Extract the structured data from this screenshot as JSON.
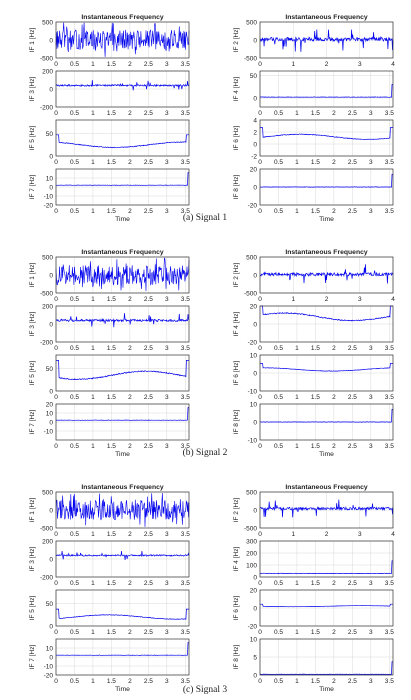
{
  "figure": {
    "captions": [
      "(a) Signal 1",
      "(b) Signal 2",
      "(c) Signal 3"
    ],
    "colors": {
      "trace": "#0000ee",
      "axis": "#333333",
      "grid": "#d8d8d8",
      "text": "#222222"
    }
  },
  "chart_data": [
    {
      "type": "line",
      "signal": "Signal 1",
      "column": "left",
      "panel": 1,
      "title": "Instantaneous Frequency",
      "ylabel": "IF 1 [Hz]",
      "xlabel": "",
      "xlim": [
        0,
        3.6
      ],
      "ylim": [
        -500,
        500
      ],
      "yticks": [
        -500,
        0,
        500
      ],
      "xticks": [
        "0",
        "0.5",
        "1",
        "1.5",
        "2",
        "2.5",
        "3",
        "3.5"
      ],
      "pattern": "bands",
      "baseline": 0,
      "amp": 500
    },
    {
      "type": "line",
      "signal": "Signal 1",
      "column": "left",
      "panel": 3,
      "title": "",
      "ylabel": "IF 3 [Hz]",
      "xlabel": "",
      "xlim": [
        0,
        3.6
      ],
      "ylim": [
        -200,
        200
      ],
      "yticks": [
        -200,
        0,
        200
      ],
      "xticks": [
        "0",
        "0.5",
        "1",
        "1.5",
        "2",
        "2.5",
        "3",
        "3.5"
      ],
      "pattern": "spiky",
      "baseline": 40,
      "amp": 60
    },
    {
      "type": "line",
      "signal": "Signal 1",
      "column": "left",
      "panel": 5,
      "title": "",
      "ylabel": "IF 5 [Hz]",
      "xlabel": "",
      "xlim": [
        0,
        3.6
      ],
      "ylim": [
        0,
        80
      ],
      "yticks": [
        0,
        50
      ],
      "xticks": [
        "0",
        "0.5",
        "1",
        "1.5",
        "2",
        "2.5",
        "3",
        "3.5"
      ],
      "pattern": "smooth",
      "baseline": 25,
      "amp": 10
    },
    {
      "type": "line",
      "signal": "Signal 1",
      "column": "left",
      "panel": 7,
      "title": "",
      "ylabel": "IF 7 [Hz]",
      "xlabel": "Time",
      "xlim": [
        0,
        3.6
      ],
      "ylim": [
        -20,
        20
      ],
      "yticks": [
        -20,
        -10,
        0,
        10
      ],
      "xticks": [
        "0",
        "0.5",
        "1",
        "1.5",
        "2",
        "2.5",
        "3",
        "3.5"
      ],
      "pattern": "flat",
      "baseline": 2,
      "amp": 0
    },
    {
      "type": "line",
      "signal": "Signal 1",
      "column": "right",
      "panel": 2,
      "title": "Instantaneous Frequency",
      "ylabel": "IF 2 [Hz]",
      "xlabel": "",
      "xlim": [
        0,
        4
      ],
      "ylim": [
        -500,
        500
      ],
      "yticks": [
        -500,
        0,
        500
      ],
      "xticks": [
        "0",
        "1",
        "2",
        "3",
        "4"
      ],
      "pattern": "spiky",
      "baseline": 20,
      "amp": 350
    },
    {
      "type": "line",
      "signal": "Signal 1",
      "column": "right",
      "panel": 4,
      "title": "",
      "ylabel": "IF 4 [Hz]",
      "xlabel": "",
      "xlim": [
        0,
        3.6
      ],
      "ylim": [
        -20,
        60
      ],
      "yticks": [
        0,
        50
      ],
      "xticks": [
        "0",
        "0.5",
        "1",
        "1.5",
        "2",
        "2.5",
        "3",
        "3.5"
      ],
      "pattern": "flat",
      "baseline": 2,
      "amp": 0
    },
    {
      "type": "line",
      "signal": "Signal 1",
      "column": "right",
      "panel": 6,
      "title": "",
      "ylabel": "IF 6 [Hz]",
      "xlabel": "",
      "xlim": [
        0,
        3.6
      ],
      "ylim": [
        -2,
        4
      ],
      "yticks": [
        -2,
        0,
        2,
        4
      ],
      "xticks": [
        "0",
        "0.5",
        "1",
        "1.5",
        "2",
        "2.5",
        "3",
        "3.5"
      ],
      "pattern": "smooth",
      "baseline": 1.2,
      "amp": 0.7
    },
    {
      "type": "line",
      "signal": "Signal 1",
      "column": "right",
      "panel": 8,
      "title": "",
      "ylabel": "IF 8 [Hz]",
      "xlabel": "Time",
      "xlim": [
        0,
        3.6
      ],
      "ylim": [
        -20,
        20
      ],
      "yticks": [
        -20,
        0,
        20
      ],
      "xticks": [
        "0",
        "0.5",
        "1",
        "1.5",
        "2",
        "2.5",
        "3",
        "3.5"
      ],
      "pattern": "flat",
      "baseline": 0,
      "amp": 0
    },
    {
      "type": "line",
      "signal": "Signal 2",
      "column": "left",
      "panel": 1,
      "title": "Instantaneous Frequency",
      "ylabel": "IF 1 [Hz]",
      "xlabel": "",
      "xlim": [
        0,
        3.6
      ],
      "ylim": [
        -500,
        500
      ],
      "yticks": [
        -500,
        0,
        500
      ],
      "xticks": [
        "0",
        "0.5",
        "1",
        "1.5",
        "2",
        "2.5",
        "3",
        "3.5"
      ],
      "pattern": "bands",
      "baseline": 0,
      "amp": 500
    },
    {
      "type": "line",
      "signal": "Signal 2",
      "column": "left",
      "panel": 3,
      "title": "",
      "ylabel": "IF 3 [Hz]",
      "xlabel": "",
      "xlim": [
        0,
        3.6
      ],
      "ylim": [
        -200,
        200
      ],
      "yticks": [
        -200,
        0,
        200
      ],
      "xticks": [
        "0",
        "0.5",
        "1",
        "1.5",
        "2",
        "2.5",
        "3",
        "3.5"
      ],
      "pattern": "spiky",
      "baseline": 40,
      "amp": 80
    },
    {
      "type": "line",
      "signal": "Signal 2",
      "column": "left",
      "panel": 5,
      "title": "",
      "ylabel": "IF 5 [Hz]",
      "xlabel": "",
      "xlim": [
        0,
        3.6
      ],
      "ylim": [
        0,
        80
      ],
      "yticks": [
        0,
        50
      ],
      "xticks": [
        "0",
        "0.5",
        "1",
        "1.5",
        "2",
        "2.5",
        "3",
        "3.5"
      ],
      "pattern": "smooth",
      "baseline": 35,
      "amp": 15
    },
    {
      "type": "line",
      "signal": "Signal 2",
      "column": "left",
      "panel": 7,
      "title": "",
      "ylabel": "IF 7 [Hz]",
      "xlabel": "Time",
      "xlim": [
        0,
        3.6
      ],
      "ylim": [
        -20,
        20
      ],
      "yticks": [
        -10,
        0,
        10,
        20
      ],
      "xticks": [
        "0",
        "0.5",
        "1",
        "1.5",
        "2",
        "2.5",
        "3",
        "3.5"
      ],
      "pattern": "flat",
      "baseline": 2,
      "amp": 0
    },
    {
      "type": "line",
      "signal": "Signal 2",
      "column": "right",
      "panel": 2,
      "title": "Instantaneous Frequency",
      "ylabel": "IF 2 [Hz]",
      "xlabel": "",
      "xlim": [
        0,
        4
      ],
      "ylim": [
        -500,
        500
      ],
      "yticks": [
        -500,
        0,
        500
      ],
      "xticks": [
        "0",
        "1",
        "2",
        "3",
        "4"
      ],
      "pattern": "spiky",
      "baseline": 20,
      "amp": 300
    },
    {
      "type": "line",
      "signal": "Signal 2",
      "column": "right",
      "panel": 4,
      "title": "",
      "ylabel": "IF 4 [Hz]",
      "xlabel": "",
      "xlim": [
        0,
        3.6
      ],
      "ylim": [
        -20,
        20
      ],
      "yticks": [
        -20,
        0,
        20
      ],
      "xticks": [
        "0",
        "0.5",
        "1",
        "1.5",
        "2",
        "2.5",
        "3",
        "3.5"
      ],
      "pattern": "smooth",
      "baseline": 8,
      "amp": 7
    },
    {
      "type": "line",
      "signal": "Signal 2",
      "column": "right",
      "panel": 6,
      "title": "",
      "ylabel": "IF 6 [Hz]",
      "xlabel": "",
      "xlim": [
        0,
        3.6
      ],
      "ylim": [
        -10,
        10
      ],
      "yticks": [
        -10,
        0,
        10
      ],
      "xticks": [
        "0",
        "0.5",
        "1",
        "1.5",
        "2",
        "2.5",
        "3",
        "3.5"
      ],
      "pattern": "smooth",
      "baseline": 2,
      "amp": 1.5
    },
    {
      "type": "line",
      "signal": "Signal 2",
      "column": "right",
      "panel": 8,
      "title": "",
      "ylabel": "IF 8 [Hz]",
      "xlabel": "Time",
      "xlim": [
        0,
        3.6
      ],
      "ylim": [
        -10,
        10
      ],
      "yticks": [
        -10,
        0,
        10
      ],
      "xticks": [
        "0",
        "0.5",
        "1",
        "1.5",
        "2",
        "2.5",
        "3",
        "3.5"
      ],
      "pattern": "flat",
      "baseline": 0,
      "amp": 0
    },
    {
      "type": "line",
      "signal": "Signal 3",
      "column": "left",
      "panel": 1,
      "title": "Instantaneous Frequency",
      "ylabel": "IF 1 [Hz]",
      "xlabel": "",
      "xlim": [
        0,
        3.6
      ],
      "ylim": [
        -500,
        500
      ],
      "yticks": [
        -500,
        0,
        500
      ],
      "xticks": [
        "0",
        "0.5",
        "1",
        "1.5",
        "2",
        "2.5",
        "3",
        "3.5"
      ],
      "pattern": "bands",
      "baseline": 0,
      "amp": 500
    },
    {
      "type": "line",
      "signal": "Signal 3",
      "column": "left",
      "panel": 3,
      "title": "",
      "ylabel": "IF 3 [Hz]",
      "xlabel": "",
      "xlim": [
        0,
        3.6
      ],
      "ylim": [
        -200,
        200
      ],
      "yticks": [
        -200,
        0,
        200
      ],
      "xticks": [
        "0",
        "0.5",
        "1",
        "1.5",
        "2",
        "2.5",
        "3",
        "3.5"
      ],
      "pattern": "spiky",
      "baseline": 40,
      "amp": 50
    },
    {
      "type": "line",
      "signal": "Signal 3",
      "column": "left",
      "panel": 5,
      "title": "",
      "ylabel": "IF 5 [Hz]",
      "xlabel": "",
      "xlim": [
        0,
        3.6
      ],
      "ylim": [
        0,
        80
      ],
      "yticks": [
        0,
        50
      ],
      "xticks": [
        "0",
        "0.5",
        "1",
        "1.5",
        "2",
        "2.5",
        "3",
        "3.5"
      ],
      "pattern": "smooth",
      "baseline": 20,
      "amp": 8
    },
    {
      "type": "line",
      "signal": "Signal 3",
      "column": "left",
      "panel": 7,
      "title": "",
      "ylabel": "IF 7 [Hz]",
      "xlabel": "Time",
      "xlim": [
        0,
        3.6
      ],
      "ylim": [
        -20,
        20
      ],
      "yticks": [
        -20,
        -10,
        0,
        10
      ],
      "xticks": [
        "0",
        "0.5",
        "1",
        "1.5",
        "2",
        "2.5",
        "3",
        "3.5"
      ],
      "pattern": "flat",
      "baseline": 2,
      "amp": 0
    },
    {
      "type": "line",
      "signal": "Signal 3",
      "column": "right",
      "panel": 2,
      "title": "Instantaneous Frequency",
      "ylabel": "IF 2 [Hz]",
      "xlabel": "",
      "xlim": [
        0,
        4
      ],
      "ylim": [
        -500,
        500
      ],
      "yticks": [
        -500,
        0,
        500
      ],
      "xticks": [
        "0",
        "1",
        "2",
        "3",
        "4"
      ],
      "pattern": "spiky",
      "baseline": 40,
      "amp": 250
    },
    {
      "type": "line",
      "signal": "Signal 3",
      "column": "right",
      "panel": 4,
      "title": "",
      "ylabel": "IF 4 [Hz]",
      "xlabel": "",
      "xlim": [
        0,
        3.6
      ],
      "ylim": [
        0,
        300
      ],
      "yticks": [
        0,
        100,
        200,
        300
      ],
      "xticks": [
        "0",
        "0.5",
        "1",
        "1.5",
        "2",
        "2.5",
        "3",
        "3.5"
      ],
      "pattern": "flat",
      "baseline": 30,
      "amp": 0
    },
    {
      "type": "line",
      "signal": "Signal 3",
      "column": "right",
      "panel": 6,
      "title": "",
      "ylabel": "IF 6 [Hz]",
      "xlabel": "",
      "xlim": [
        0,
        3.6
      ],
      "ylim": [
        -20,
        20
      ],
      "yticks": [
        -20,
        0,
        20
      ],
      "xticks": [
        "0",
        "0.5",
        "1",
        "1.5",
        "2",
        "2.5",
        "3",
        "3.5"
      ],
      "pattern": "smooth",
      "baseline": 2,
      "amp": 1
    },
    {
      "type": "line",
      "signal": "Signal 3",
      "column": "right",
      "panel": 8,
      "title": "",
      "ylabel": "IF 8 [Hz]",
      "xlabel": "Time",
      "xlim": [
        0,
        3.6
      ],
      "ylim": [
        0,
        10
      ],
      "yticks": [
        0,
        5,
        10
      ],
      "xticks": [
        "0",
        "0.5",
        "1",
        "1.5",
        "2",
        "2.5",
        "3",
        "3.5"
      ],
      "pattern": "flat",
      "baseline": 0.2,
      "amp": 0
    }
  ]
}
